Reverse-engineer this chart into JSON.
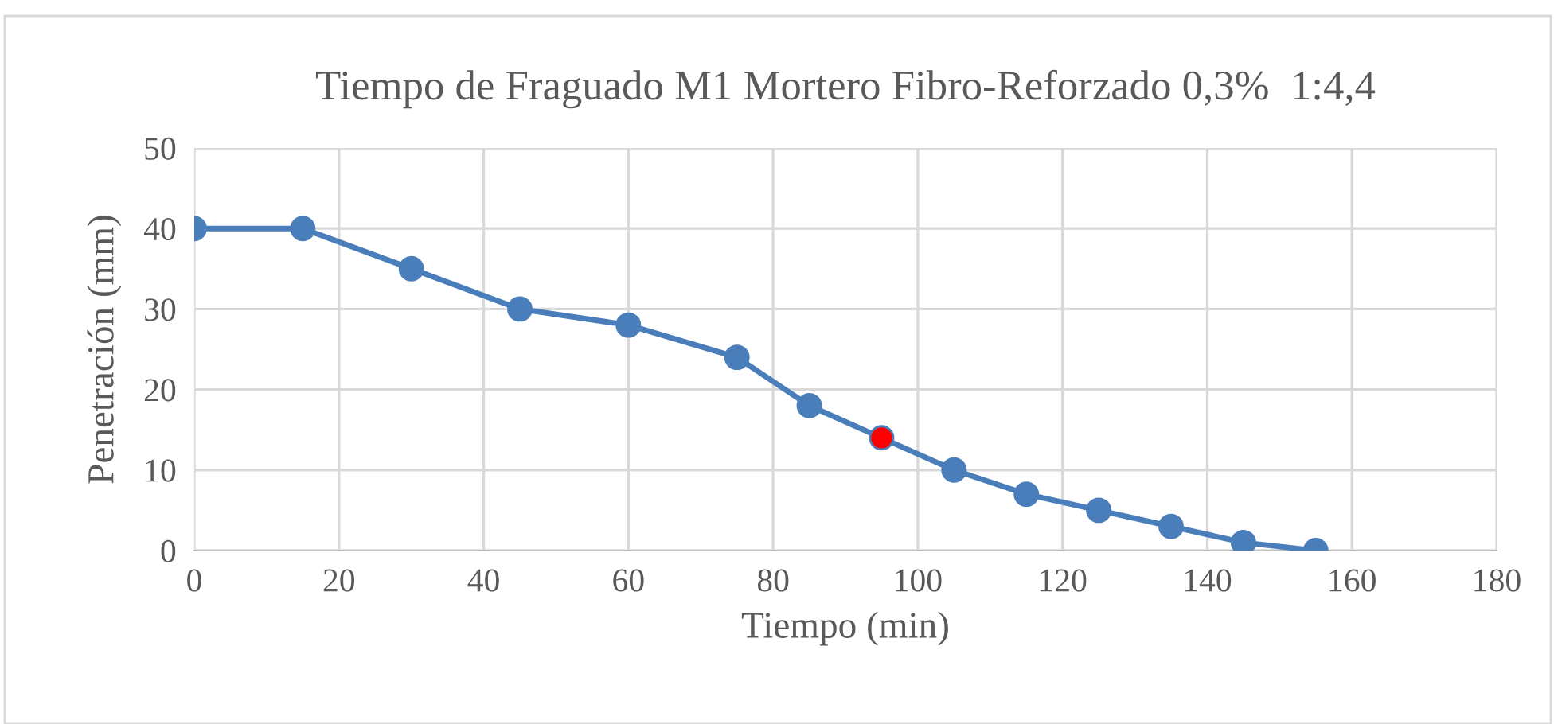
{
  "chart_data": {
    "type": "line",
    "title": "Tiempo de Fraguado M1 Mortero Fibro-Reforzado 0,3%  1:4,4",
    "xlabel": "Tiempo (min)",
    "ylabel": "Penetración (mm)",
    "x": [
      0,
      15,
      30,
      45,
      60,
      75,
      85,
      95,
      105,
      115,
      125,
      135,
      145,
      155
    ],
    "series": [
      {
        "color": "#4a7ebb",
        "values": [
          40,
          40,
          35,
          30,
          28,
          24,
          18,
          14,
          10,
          7,
          5,
          3,
          1,
          0
        ],
        "colors": [
          "#4a7ebb",
          "#4a7ebb",
          "#4a7ebb",
          "#4a7ebb",
          "#4a7ebb",
          "#4a7ebb",
          "#4a7ebb",
          "#ff0000",
          "#4a7ebb",
          "#4a7ebb",
          "#4a7ebb",
          "#4a7ebb",
          "#4a7ebb",
          "#4a7ebb"
        ]
      }
    ],
    "xlim": [
      0,
      180
    ],
    "xticks": [
      0,
      20,
      40,
      60,
      80,
      100,
      120,
      140,
      160,
      180
    ],
    "ylim": [
      0,
      50
    ],
    "yticks": [
      0,
      10,
      20,
      30,
      40,
      50
    ],
    "grid": true,
    "marker": "circle",
    "line_style": "solid",
    "legend": false
  }
}
